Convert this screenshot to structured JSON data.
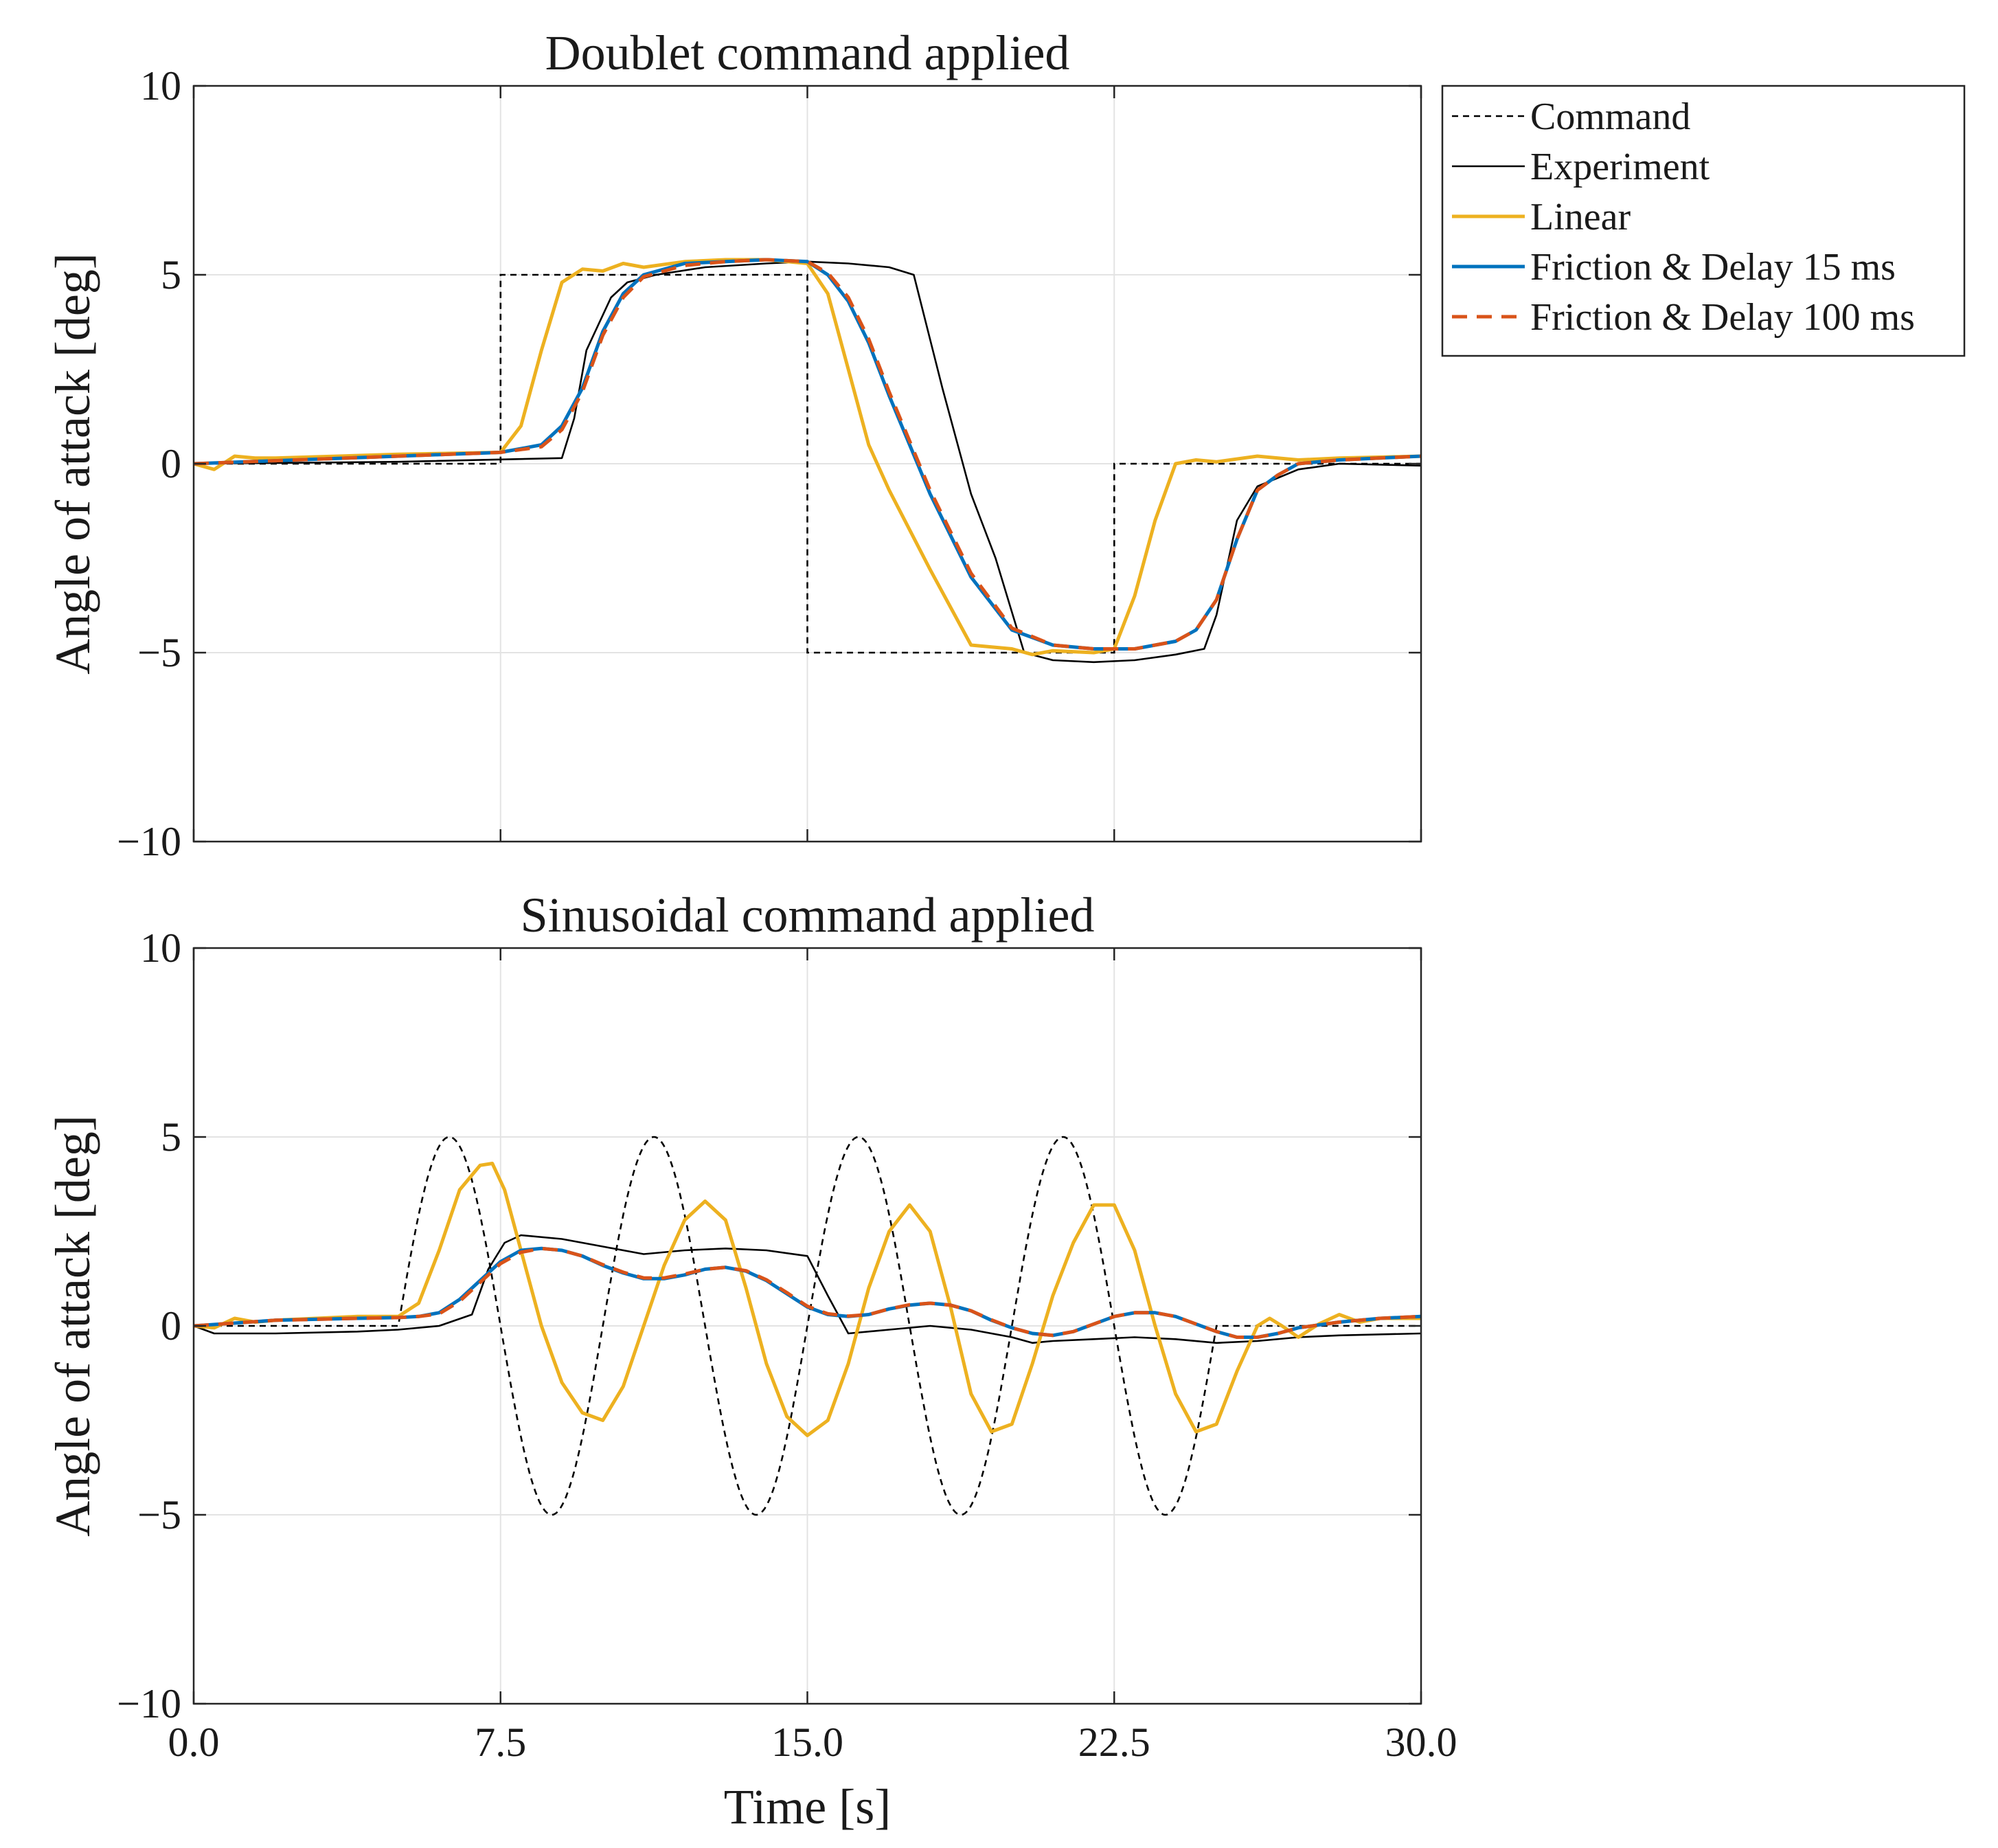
{
  "chart_data": [
    {
      "type": "line",
      "title": "Doublet command applied",
      "xlabel": "",
      "ylabel": "Angle of attack [deg]",
      "xlim": [
        0,
        30
      ],
      "ylim": [
        -10,
        10
      ],
      "xticks": [
        0.0,
        7.5,
        15.0,
        22.5,
        30.0
      ],
      "xtick_labels_visible": false,
      "yticks": [
        -10,
        -5,
        0,
        5,
        10
      ],
      "ytick_labels": [
        "−10",
        "−5",
        "0",
        "5",
        "10"
      ],
      "grid": true,
      "series": [
        {
          "name": "Command",
          "color": "#000000",
          "style": "dotted",
          "x": [
            0,
            7.5,
            7.5,
            15,
            15,
            22.5,
            22.5,
            30
          ],
          "y": [
            0,
            0,
            5,
            5,
            -5,
            -5,
            0,
            0
          ]
        },
        {
          "name": "Experiment",
          "color": "#000000",
          "style": "solid",
          "x": [
            0,
            5,
            9,
            9.3,
            9.6,
            10.2,
            10.6,
            11.3,
            12.5,
            14,
            15,
            16,
            17,
            17.6,
            18.3,
            19,
            19.6,
            20.3,
            21,
            22,
            23,
            24,
            24.7,
            25,
            25.5,
            26,
            27,
            28,
            30
          ],
          "y": [
            0,
            0.05,
            0.15,
            1.2,
            3.0,
            4.4,
            4.8,
            5.0,
            5.2,
            5.3,
            5.35,
            5.3,
            5.2,
            5.0,
            2.0,
            -0.8,
            -2.5,
            -5.0,
            -5.2,
            -5.25,
            -5.2,
            -5.05,
            -4.9,
            -4.0,
            -1.5,
            -0.6,
            -0.15,
            0,
            -0.05
          ]
        },
        {
          "name": "Linear",
          "color": "#EDB120",
          "style": "solid",
          "x": [
            0,
            0.5,
            1,
            1.5,
            2,
            5,
            7.5,
            8,
            8.5,
            9,
            9.5,
            10,
            10.5,
            11,
            12,
            13,
            14,
            15,
            15.5,
            16,
            16.5,
            17,
            18,
            19,
            20,
            20.5,
            21,
            22,
            22.5,
            23,
            23.5,
            24,
            24.5,
            25,
            26,
            27,
            28,
            30
          ],
          "y": [
            0,
            -0.15,
            0.2,
            0.15,
            0.15,
            0.25,
            0.3,
            1.0,
            3.0,
            4.8,
            5.15,
            5.1,
            5.3,
            5.2,
            5.35,
            5.4,
            5.4,
            5.3,
            4.5,
            2.5,
            0.5,
            -0.7,
            -2.8,
            -4.8,
            -4.9,
            -5.05,
            -4.95,
            -5.0,
            -4.9,
            -3.5,
            -1.5,
            0.0,
            0.1,
            0.05,
            0.2,
            0.1,
            0.15,
            0.2
          ]
        },
        {
          "name": "Friction & Delay 15 ms",
          "color": "#0072BD",
          "style": "solid",
          "x": [
            0,
            5,
            7.5,
            8.5,
            9,
            9.5,
            10,
            10.5,
            11,
            12,
            13,
            14,
            15,
            15.5,
            16,
            16.5,
            17,
            18,
            19,
            20,
            21,
            22,
            23,
            24,
            24.5,
            25,
            25.5,
            26,
            26.5,
            27,
            28,
            30
          ],
          "y": [
            0,
            0.2,
            0.3,
            0.5,
            1.0,
            2.0,
            3.5,
            4.5,
            5.0,
            5.3,
            5.35,
            5.4,
            5.35,
            5.0,
            4.3,
            3.2,
            1.8,
            -0.8,
            -3.0,
            -4.4,
            -4.8,
            -4.9,
            -4.9,
            -4.7,
            -4.4,
            -3.6,
            -2.0,
            -0.7,
            -0.3,
            0.0,
            0.1,
            0.2
          ]
        },
        {
          "name": "Friction & Delay 100 ms",
          "color": "#D95319",
          "style": "dashed",
          "x": [
            0,
            5,
            7.5,
            8.5,
            9,
            9.5,
            10,
            10.5,
            11,
            12,
            13,
            14,
            15,
            15.5,
            16,
            16.5,
            17,
            18,
            19,
            20,
            21,
            22,
            23,
            24,
            24.5,
            25,
            25.5,
            26,
            26.5,
            27,
            28,
            30
          ],
          "y": [
            0,
            0.2,
            0.3,
            0.45,
            0.9,
            1.9,
            3.4,
            4.4,
            4.95,
            5.25,
            5.35,
            5.4,
            5.35,
            5.05,
            4.4,
            3.3,
            1.9,
            -0.7,
            -2.9,
            -4.35,
            -4.8,
            -4.9,
            -4.9,
            -4.7,
            -4.4,
            -3.6,
            -2.0,
            -0.7,
            -0.3,
            0.0,
            0.1,
            0.2
          ]
        }
      ]
    },
    {
      "type": "line",
      "title": "Sinusoidal command applied",
      "xlabel": "Time [s]",
      "ylabel": "Angle of attack [deg]",
      "xlim": [
        0,
        30
      ],
      "ylim": [
        -10,
        10
      ],
      "xticks": [
        0.0,
        7.5,
        15.0,
        22.5,
        30.0
      ],
      "xtick_labels": [
        "0.0",
        "7.5",
        "15.0",
        "22.5",
        "30.0"
      ],
      "xtick_labels_visible": true,
      "yticks": [
        -10,
        -5,
        0,
        5,
        10
      ],
      "ytick_labels": [
        "−10",
        "−5",
        "0",
        "5",
        "10"
      ],
      "grid": true,
      "command_sine": {
        "amplitude": 5,
        "period": 5,
        "start": 5,
        "end": 25
      },
      "series": [
        {
          "name": "Experiment",
          "color": "#000000",
          "style": "solid",
          "x": [
            0,
            0.5,
            2,
            4,
            5,
            6,
            6.8,
            7.2,
            7.6,
            8,
            9,
            10,
            11,
            12,
            13,
            14,
            15,
            15.5,
            16,
            17,
            18,
            19,
            20,
            20.5,
            21,
            22,
            23,
            24,
            25,
            26,
            27,
            28,
            30
          ],
          "y": [
            0,
            -0.2,
            -0.2,
            -0.15,
            -0.1,
            0.0,
            0.3,
            1.5,
            2.2,
            2.4,
            2.3,
            2.1,
            1.9,
            2.0,
            2.05,
            2.0,
            1.85,
            0.8,
            -0.2,
            -0.1,
            0.0,
            -0.1,
            -0.3,
            -0.45,
            -0.4,
            -0.35,
            -0.3,
            -0.35,
            -0.45,
            -0.4,
            -0.3,
            -0.25,
            -0.2
          ]
        },
        {
          "name": "Linear",
          "color": "#EDB120",
          "style": "solid",
          "x": [
            0,
            0.5,
            1,
            1.5,
            2,
            3,
            4,
            5,
            5.5,
            6,
            6.5,
            7,
            7.3,
            7.6,
            8,
            8.5,
            9,
            9.5,
            10,
            10.5,
            11,
            11.5,
            12,
            12.5,
            13,
            13.5,
            14,
            14.5,
            15,
            15.5,
            16,
            16.5,
            17,
            17.5,
            18,
            18.5,
            19,
            19.5,
            20,
            20.5,
            21,
            21.5,
            22,
            22.5,
            23,
            23.5,
            24,
            24.5,
            25,
            25.5,
            26,
            26.3,
            26.6,
            27,
            27.5,
            28,
            28.5,
            29,
            30
          ],
          "y": [
            0,
            -0.05,
            0.2,
            0.1,
            0.15,
            0.2,
            0.25,
            0.25,
            0.6,
            2.0,
            3.6,
            4.25,
            4.3,
            3.6,
            2.0,
            0.0,
            -1.5,
            -2.3,
            -2.5,
            -1.6,
            0.0,
            1.6,
            2.8,
            3.3,
            2.8,
            1.0,
            -1.0,
            -2.4,
            -2.9,
            -2.5,
            -1.0,
            1.0,
            2.5,
            3.2,
            2.5,
            0.5,
            -1.8,
            -2.8,
            -2.6,
            -1.0,
            0.8,
            2.2,
            3.2,
            3.2,
            2.0,
            0.0,
            -1.8,
            -2.8,
            -2.6,
            -1.2,
            0.0,
            0.2,
            0.0,
            -0.3,
            0.05,
            0.3,
            0.1,
            0.2,
            0.2
          ]
        },
        {
          "name": "Friction & Delay 15 ms",
          "color": "#0072BD",
          "style": "solid",
          "x": [
            0,
            2,
            4,
            5,
            5.5,
            6,
            6.5,
            7,
            7.5,
            8,
            8.5,
            9,
            9.5,
            10,
            10.5,
            11,
            11.5,
            12,
            12.5,
            13,
            13.5,
            14,
            14.5,
            15,
            15.5,
            16,
            16.5,
            17,
            17.5,
            18,
            18.5,
            19,
            19.5,
            20,
            20.5,
            21,
            21.5,
            22,
            22.5,
            23,
            23.5,
            24,
            24.5,
            25,
            25.5,
            26,
            26.5,
            27,
            28,
            29,
            30
          ],
          "y": [
            0,
            0.15,
            0.2,
            0.22,
            0.25,
            0.35,
            0.7,
            1.2,
            1.7,
            2.0,
            2.05,
            2.0,
            1.85,
            1.6,
            1.4,
            1.25,
            1.25,
            1.35,
            1.5,
            1.55,
            1.45,
            1.2,
            0.85,
            0.5,
            0.3,
            0.25,
            0.3,
            0.45,
            0.55,
            0.6,
            0.55,
            0.4,
            0.15,
            -0.05,
            -0.2,
            -0.25,
            -0.15,
            0.05,
            0.25,
            0.35,
            0.35,
            0.25,
            0.05,
            -0.15,
            -0.3,
            -0.3,
            -0.2,
            -0.05,
            0.1,
            0.2,
            0.25
          ]
        },
        {
          "name": "Friction & Delay 100 ms",
          "color": "#D95319",
          "style": "dashed",
          "x": [
            0,
            2,
            4,
            5,
            5.5,
            6,
            6.5,
            7,
            7.5,
            8,
            8.5,
            9,
            9.5,
            10,
            10.5,
            11,
            11.5,
            12,
            12.5,
            13,
            13.5,
            14,
            14.5,
            15,
            15.5,
            16,
            16.5,
            17,
            17.5,
            18,
            18.5,
            19,
            19.5,
            20,
            20.5,
            21,
            21.5,
            22,
            22.5,
            23,
            23.5,
            24,
            24.5,
            25,
            25.5,
            26,
            26.5,
            27,
            28,
            29,
            30
          ],
          "y": [
            0,
            0.15,
            0.2,
            0.22,
            0.25,
            0.32,
            0.65,
            1.15,
            1.65,
            1.95,
            2.05,
            2.0,
            1.85,
            1.62,
            1.42,
            1.27,
            1.27,
            1.37,
            1.5,
            1.55,
            1.46,
            1.22,
            0.88,
            0.52,
            0.32,
            0.26,
            0.3,
            0.45,
            0.56,
            0.6,
            0.55,
            0.4,
            0.16,
            -0.05,
            -0.2,
            -0.25,
            -0.15,
            0.05,
            0.25,
            0.35,
            0.35,
            0.25,
            0.05,
            -0.15,
            -0.3,
            -0.3,
            -0.2,
            -0.05,
            0.1,
            0.2,
            0.25
          ]
        }
      ]
    }
  ],
  "legend": {
    "entries": [
      {
        "label": "Command",
        "color": "#000000",
        "style": "dotted"
      },
      {
        "label": "Experiment",
        "color": "#000000",
        "style": "solid"
      },
      {
        "label": "Linear",
        "color": "#EDB120",
        "style": "solid"
      },
      {
        "label": "Friction & Delay 15 ms",
        "color": "#0072BD",
        "style": "solid"
      },
      {
        "label": "Friction & Delay 100 ms",
        "color": "#D95319",
        "style": "dashed"
      }
    ]
  }
}
